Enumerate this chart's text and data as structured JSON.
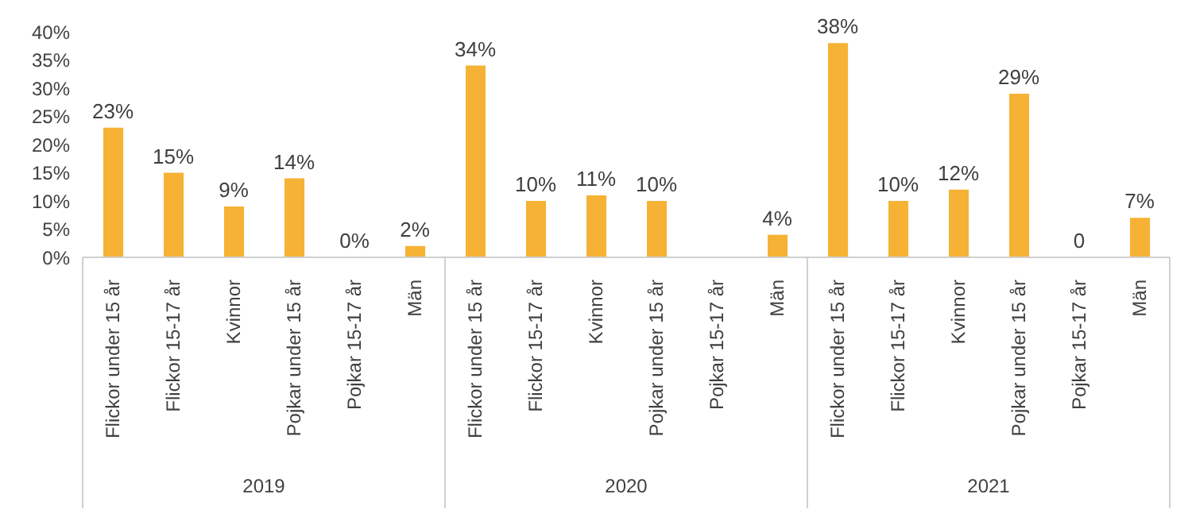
{
  "chart_data": {
    "type": "bar",
    "categories": [
      "Flickor under 15 år",
      "Flickor 15-17 år",
      "Kvinnor",
      "Pojkar under 15 år",
      "Pojkar 15-17 år",
      "Män",
      "Flickor under 15 år",
      "Flickor 15-17 år",
      "Kvinnor",
      "Pojkar under 15 år",
      "Pojkar 15-17 år",
      "Män",
      "Flickor under 15 år",
      "Flickor 15-17 år",
      "Kvinnor",
      "Pojkar under 15 år",
      "Pojkar 15-17 år",
      "Män"
    ],
    "values": [
      23,
      15,
      9,
      14,
      0,
      2,
      34,
      10,
      11,
      10,
      null,
      4,
      38,
      10,
      12,
      29,
      0,
      7
    ],
    "value_labels": [
      "23%",
      "15%",
      "9%",
      "14%",
      "0%",
      "2%",
      "34%",
      "10%",
      "11%",
      "10%",
      null,
      "4%",
      "38%",
      "10%",
      "12%",
      "29%",
      "0",
      "7%"
    ],
    "color": "#f6b234",
    "ylim": [
      0,
      40
    ],
    "yticks": [
      {
        "value": 0,
        "label": "0%"
      },
      {
        "value": 5,
        "label": "5%"
      },
      {
        "value": 10,
        "label": "10%"
      },
      {
        "value": 15,
        "label": "15%"
      },
      {
        "value": 20,
        "label": "20%"
      },
      {
        "value": 25,
        "label": "25%"
      },
      {
        "value": 30,
        "label": "30%"
      },
      {
        "value": 35,
        "label": "35%"
      },
      {
        "value": 40,
        "label": "40%"
      }
    ],
    "grid": false,
    "annotations": [
      "2019",
      "2020",
      "2021"
    ]
  }
}
